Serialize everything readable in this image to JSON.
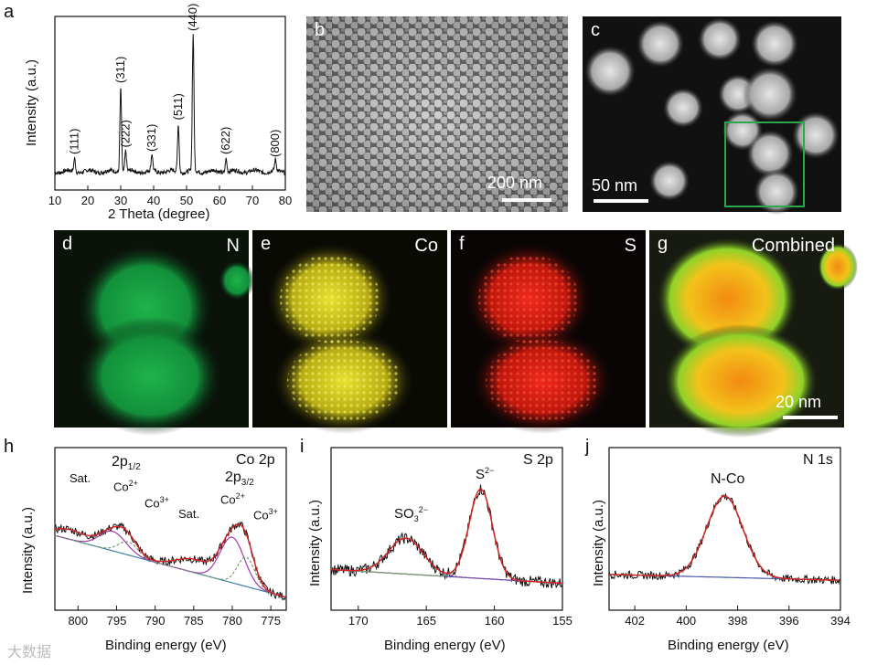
{
  "panel_letters": {
    "a": "a",
    "b": "b",
    "c": "c",
    "d": "d",
    "e": "e",
    "f": "f",
    "g": "g",
    "h": "h",
    "i": "i",
    "j": "j"
  },
  "xrd": {
    "ylabel": "Intensity (a.u.)",
    "xlabel": "2 Theta (degree)",
    "xticks": [
      "10",
      "20",
      "30",
      "40",
      "50",
      "60",
      "70",
      "80"
    ],
    "peaks": [
      "(111)",
      "(311)",
      "(222)",
      "(331)",
      "(511)",
      "(440)",
      "(622)",
      "(800)"
    ]
  },
  "sem": {
    "scale": "200 nm"
  },
  "tem": {
    "scale": "50 nm"
  },
  "maps": {
    "d_label": "N",
    "e_label": "Co",
    "f_label": "S",
    "g_label": "Combined",
    "scale": "20 nm"
  },
  "xps_co": {
    "title": "Co 2p",
    "ylabel": "Intensity (a.u.)",
    "xlabel": "Binding energy (eV)",
    "xticks": [
      "800",
      "795",
      "790",
      "785",
      "780",
      "775"
    ],
    "ann_sat1": "Sat.",
    "ann_2p12": "2p",
    "ann_2p12_sub": "1/2",
    "ann_co2_a": "Co",
    "ann_co2_a_sup": "2+",
    "ann_co3_a": "Co",
    "ann_co3_a_sup": "3+",
    "ann_sat2": "Sat.",
    "ann_2p32": "2p",
    "ann_2p32_sub": "3/2",
    "ann_co2_b": "Co",
    "ann_co2_b_sup": "2+",
    "ann_co3_b": "Co",
    "ann_co3_b_sup": "3+"
  },
  "xps_s": {
    "title": "S 2p",
    "ylabel": "Intensity (a.u.)",
    "xlabel": "Binding energy (eV)",
    "xticks": [
      "170",
      "165",
      "160",
      "155"
    ],
    "ann_so3": "SO",
    "ann_so3_sub": "3",
    "ann_so3_sup": "2−",
    "ann_s2": "S",
    "ann_s2_sup": "2−"
  },
  "xps_n": {
    "title": "N 1s",
    "ylabel": "Intensity (a.u.)",
    "xlabel": "Binding energy (eV)",
    "xticks": [
      "402",
      "400",
      "398",
      "396",
      "394"
    ],
    "ann_nco": "N-Co"
  },
  "watermark": "大数据",
  "chart_data": [
    {
      "type": "line",
      "title": "",
      "xlabel": "2 Theta (degree)",
      "ylabel": "Intensity (a.u.)",
      "xlim": [
        10,
        80
      ],
      "peaks": [
        {
          "label": "(111)",
          "x": 16,
          "y": 0.1
        },
        {
          "label": "(311)",
          "x": 30,
          "y": 0.62
        },
        {
          "label": "(222)",
          "x": 31.5,
          "y": 0.15
        },
        {
          "label": "(331)",
          "x": 39.5,
          "y": 0.12
        },
        {
          "label": "(511)",
          "x": 47.5,
          "y": 0.35
        },
        {
          "label": "(440)",
          "x": 52,
          "y": 1.0
        },
        {
          "label": "(622)",
          "x": 62,
          "y": 0.1
        },
        {
          "label": "(800)",
          "x": 77,
          "y": 0.08
        }
      ]
    },
    {
      "type": "line",
      "title": "Co 2p",
      "xlabel": "Binding energy (eV)",
      "ylabel": "Intensity (a.u.)",
      "xlim": [
        803,
        773
      ],
      "peaks": [
        {
          "label": "Sat.",
          "x": 801
        },
        {
          "label": "Co2+ 2p1/2",
          "x": 795.5
        },
        {
          "label": "Co3+",
          "x": 793.5
        },
        {
          "label": "Sat.",
          "x": 785
        },
        {
          "label": "Co2+ 2p3/2",
          "x": 780
        },
        {
          "label": "Co3+",
          "x": 778
        }
      ]
    },
    {
      "type": "line",
      "title": "S 2p",
      "xlabel": "Binding energy (eV)",
      "ylabel": "Intensity (a.u.)",
      "xlim": [
        172,
        155
      ],
      "peaks": [
        {
          "label": "SO3 2−",
          "x": 166.5
        },
        {
          "label": "S2−",
          "x": 161
        }
      ]
    },
    {
      "type": "line",
      "title": "N 1s",
      "xlabel": "Binding energy (eV)",
      "ylabel": "Intensity (a.u.)",
      "xlim": [
        403,
        394
      ],
      "peaks": [
        {
          "label": "N-Co",
          "x": 398.5
        }
      ]
    }
  ]
}
